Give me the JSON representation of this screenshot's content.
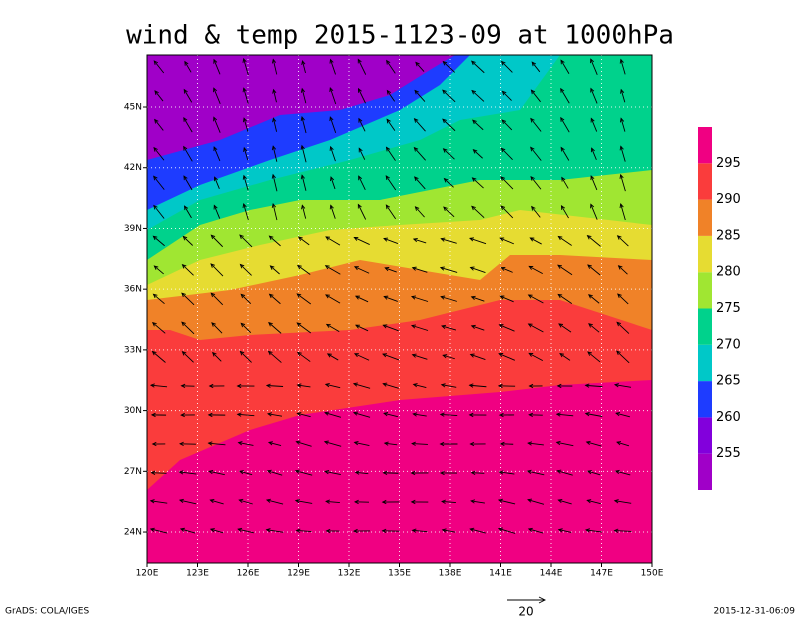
{
  "chart_data": {
    "type": "contour-map",
    "title": "wind & temp 2015-1123-09 at 1000hPa",
    "xlim": [
      120,
      150
    ],
    "ylim": [
      22.47,
      47.57
    ],
    "xticks": [
      {
        "value": 120,
        "label": "120E"
      },
      {
        "value": 123,
        "label": "123E"
      },
      {
        "value": 126,
        "label": "126E"
      },
      {
        "value": 129,
        "label": "129E"
      },
      {
        "value": 132,
        "label": "132E"
      },
      {
        "value": 135,
        "label": "135E"
      },
      {
        "value": 138,
        "label": "138E"
      },
      {
        "value": 141,
        "label": "141E"
      },
      {
        "value": 144,
        "label": "144E"
      },
      {
        "value": 147,
        "label": "147E"
      },
      {
        "value": 150,
        "label": "150E"
      }
    ],
    "yticks": [
      {
        "value": 24,
        "label": "24N"
      },
      {
        "value": 27,
        "label": "27N"
      },
      {
        "value": 30,
        "label": "30N"
      },
      {
        "value": 33,
        "label": "33N"
      },
      {
        "value": 36,
        "label": "36N"
      },
      {
        "value": 39,
        "label": "39N"
      },
      {
        "value": 42,
        "label": "42N"
      },
      {
        "value": 45,
        "label": "45N"
      }
    ],
    "grid": true,
    "colorbar": {
      "levels": [
        255,
        260,
        265,
        270,
        275,
        280,
        285,
        290,
        295
      ],
      "colors": [
        "#a000c8",
        "#8200dc",
        "#1e3cff",
        "#00c8c8",
        "#00d28c",
        "#a0e632",
        "#e6dc32",
        "#f08228",
        "#fa3c3c",
        "#f00082"
      ]
    },
    "vector_key": 20,
    "left_note": "GrADS: COLA/IGES",
    "right_note": "2015-12-31-06:09"
  }
}
